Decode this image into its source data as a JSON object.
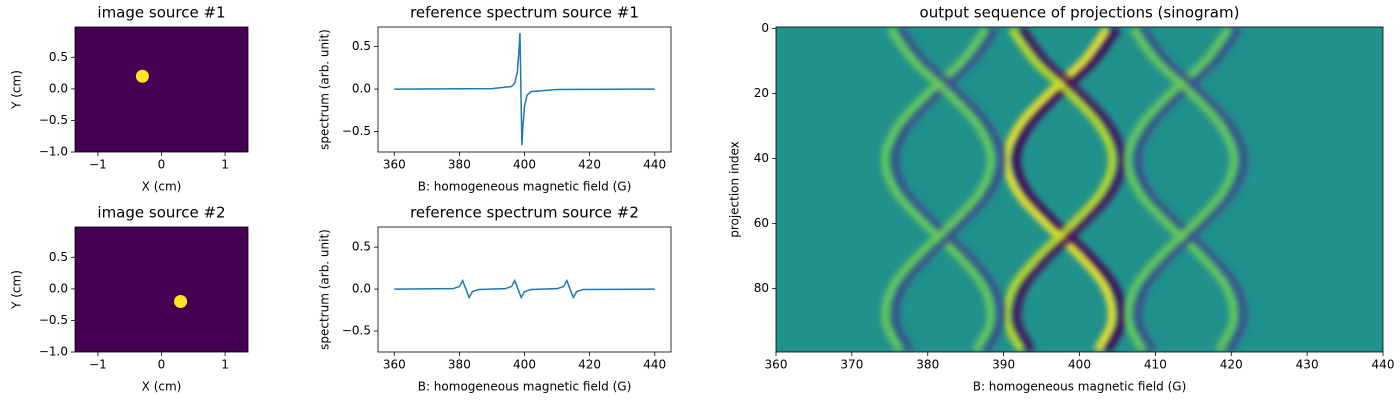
{
  "chart_data": [
    {
      "type": "scatter",
      "title": "image source #1",
      "xlabel": "X (cm)",
      "ylabel": "Y (cm)",
      "x": [
        -0.3
      ],
      "values": [
        0.2
      ],
      "color": "#fde725",
      "background": "#440154",
      "xlim": [
        -1.36,
        1.36
      ],
      "ylim": [
        -1,
        0.98
      ],
      "xticks": [
        {
          "value": -1,
          "label": "−1"
        },
        0,
        1
      ],
      "yticks": [
        {
          "value": -1,
          "label": "−1.0"
        },
        {
          "value": -0.5,
          "label": "−0.5"
        },
        {
          "value": 0,
          "label": "0.0"
        },
        0.5
      ]
    },
    {
      "type": "line",
      "title": "reference spectrum source #1",
      "xlabel": "B: homogeneous magnetic field (G)",
      "ylabel": "spectrum (arb. unit)",
      "x": [
        360,
        390,
        396,
        397,
        397.8,
        398.3,
        398.6,
        398.9,
        399.2,
        399.5,
        400,
        400.8,
        402,
        410,
        440
      ],
      "values": [
        0,
        0.005,
        0.03,
        0.07,
        0.2,
        0.45,
        0.66,
        0,
        -0.66,
        -0.45,
        -0.2,
        -0.07,
        -0.03,
        -0.005,
        0
      ],
      "color": "#1f77b4",
      "xlim": [
        355,
        445
      ],
      "ylim": [
        -0.74,
        0.73
      ],
      "xticks": [
        360,
        380,
        400,
        420,
        440
      ],
      "yticks": [
        {
          "value": -0.5,
          "label": "−0.5"
        },
        {
          "value": 0,
          "label": "0.0"
        },
        0.5
      ]
    },
    {
      "type": "sinogram",
      "title": "output sequence of projections (sinogram)",
      "xlabel": "B: homogeneous magnetic field (G)",
      "ylabel": "projection index",
      "background": "#21918c",
      "projection_index": [
        0,
        10,
        20,
        30,
        40,
        50,
        60,
        70,
        80,
        90,
        99
      ],
      "series": [
        {
          "color": "#fde725",
          "negative_color": "#440154",
          "values": [
            404.3,
            401.2,
            396.6,
            392.7,
            391.0,
            392.4,
            396.2,
            400.7,
            404.1,
            404.9,
            403.0
          ]
        },
        {
          "color": "#c8e020",
          "negative_color": "#46085c",
          "values": [
            391.7,
            394.8,
            399.4,
            403.3,
            405.0,
            403.6,
            399.8,
            395.3,
            391.9,
            391.1,
            393.0
          ]
        },
        {
          "color": "#6ccd5a",
          "negative_color": "#3b528b",
          "values": [
            388.3,
            385.2,
            380.6,
            376.7,
            375.0,
            376.4,
            380.2,
            384.7,
            388.1,
            388.9,
            387.0
          ]
        },
        {
          "color": "#6ccd5a",
          "negative_color": "#3b528b",
          "values": [
            375.7,
            378.8,
            383.4,
            387.3,
            389.0,
            387.6,
            383.8,
            379.3,
            375.9,
            375.1,
            377.0
          ]
        },
        {
          "color": "#6ccd5a",
          "negative_color": "#3b528b",
          "values": [
            420.3,
            417.2,
            412.6,
            408.7,
            407.0,
            408.4,
            412.2,
            416.7,
            420.1,
            420.9,
            419.0
          ]
        },
        {
          "color": "#6ccd5a",
          "negative_color": "#3b528b",
          "values": [
            407.7,
            410.8,
            415.4,
            419.3,
            421.0,
            419.6,
            415.8,
            411.3,
            407.9,
            407.1,
            409.0
          ]
        }
      ],
      "xlim": [
        360,
        440
      ],
      "ylim": [
        99.5,
        -0.5
      ],
      "xticks": [
        360,
        370,
        380,
        390,
        400,
        410,
        420,
        430,
        440
      ],
      "yticks": [
        0,
        20,
        40,
        60,
        80
      ]
    },
    {
      "type": "scatter",
      "title": "image source #2",
      "xlabel": "X (cm)",
      "ylabel": "Y (cm)",
      "x": [
        0.3
      ],
      "values": [
        -0.2
      ],
      "color": "#fde725",
      "background": "#440154",
      "xlim": [
        -1.36,
        1.36
      ],
      "ylim": [
        -1,
        0.98
      ],
      "xticks": [
        {
          "value": -1,
          "label": "−1"
        },
        0,
        1
      ],
      "yticks": [
        {
          "value": -1,
          "label": "−1.0"
        },
        {
          "value": -0.5,
          "label": "−0.5"
        },
        {
          "value": 0,
          "label": "0.0"
        },
        0.5
      ]
    },
    {
      "type": "line",
      "title": "reference spectrum source #2",
      "xlabel": "B: homogeneous magnetic field (G)",
      "ylabel": "spectrum (arb. unit)",
      "x": [
        360,
        378,
        380,
        381,
        382,
        383,
        384,
        386,
        394,
        396,
        397,
        398,
        399,
        400,
        402,
        410,
        412,
        413,
        414,
        415,
        416,
        418,
        440
      ],
      "values": [
        0,
        0.005,
        0.03,
        0.1,
        0,
        -0.1,
        -0.03,
        -0.005,
        0.005,
        0.03,
        0.1,
        0,
        -0.1,
        -0.03,
        -0.005,
        0.005,
        0.03,
        0.1,
        0,
        -0.1,
        -0.03,
        -0.005,
        0
      ],
      "color": "#1f77b4",
      "xlim": [
        355,
        445
      ],
      "ylim": [
        -0.75,
        0.74
      ],
      "xticks": [
        360,
        380,
        400,
        420,
        440
      ],
      "yticks": [
        {
          "value": -0.5,
          "label": "−0.5"
        },
        {
          "value": 0,
          "label": "0.0"
        },
        0.5
      ]
    }
  ]
}
